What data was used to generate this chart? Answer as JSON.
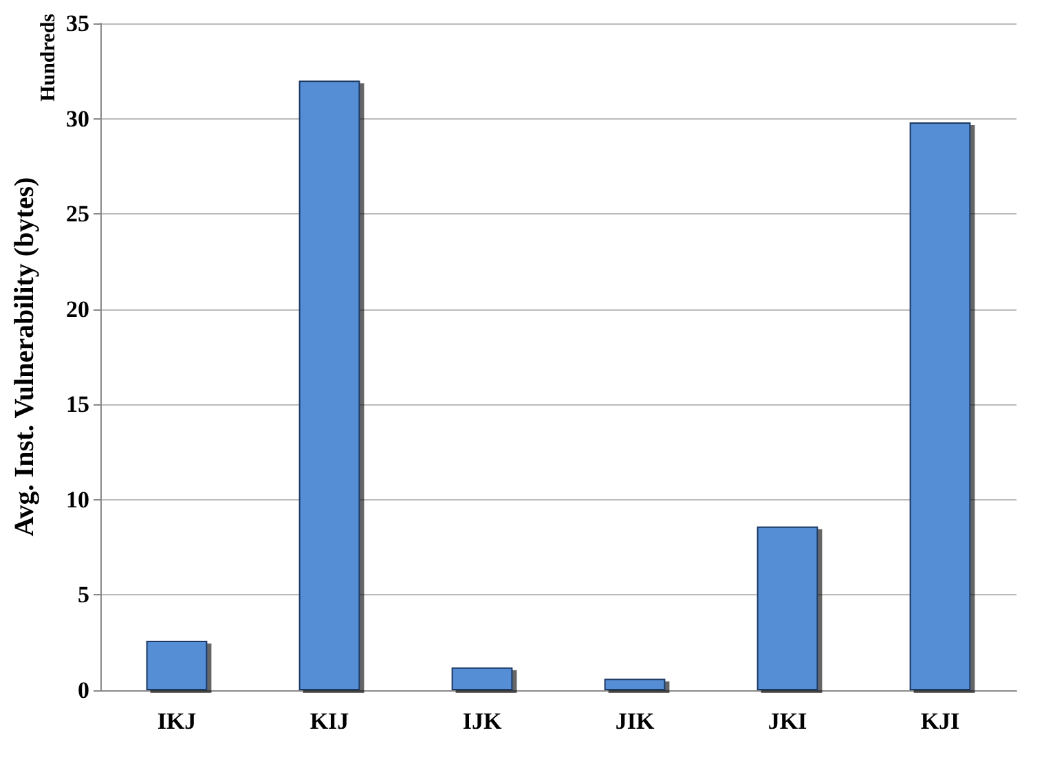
{
  "chart_data": {
    "type": "bar",
    "ylabel": "Avg. Inst. Vulnerability (bytes)",
    "annotations": [
      "Hundreds"
    ],
    "categories": [
      "IKJ",
      "KIJ",
      "IJK",
      "JIK",
      "JKI",
      "KJI"
    ],
    "values": [
      2.6,
      32.0,
      1.2,
      0.6,
      8.6,
      29.8
    ],
    "color": "#558ed5",
    "ylim": [
      0,
      35
    ],
    "yticks": [
      0,
      5,
      10,
      15,
      20,
      25,
      30,
      35
    ],
    "grid": "y"
  }
}
